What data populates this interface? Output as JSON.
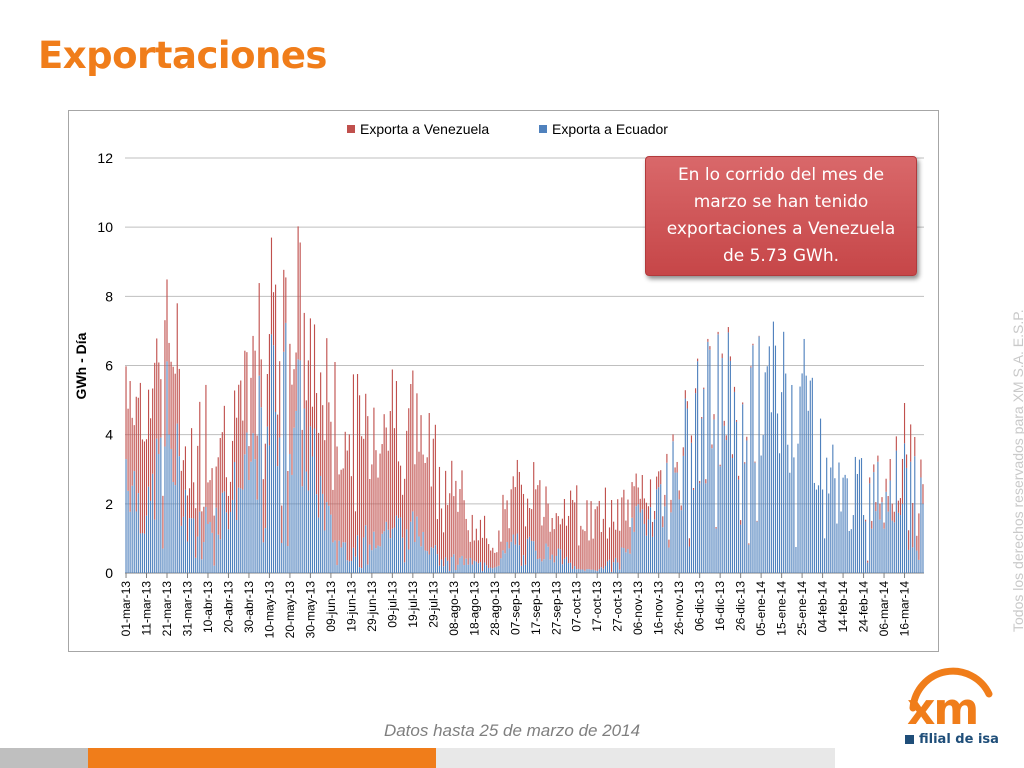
{
  "page": {
    "title": "Exportaciones",
    "footnote": "Datos hasta 25 de marzo de 2014",
    "watermark": "Todos los derechos reservados para XM S.A. E.S.P.",
    "callout": "En lo corrido del mes de marzo se han tenido exportaciones a Venezuela de 5.73 GWh.",
    "logo_text": "xm",
    "logo_subtext": "filial de isa"
  },
  "colors": {
    "title": "#f07d1a",
    "venezuela": "#c0504d",
    "ecuador": "#4f81bd",
    "grid": "#bfbfbf",
    "bar_gray": "#bfbfbf",
    "bar_orange": "#f07d1a",
    "bar_light": "#e8e8e8",
    "logo_orange": "#f07d1a",
    "logo_blue": "#1f4e79"
  },
  "chart_data": {
    "type": "bar",
    "stacked": true,
    "title": "",
    "xlabel": "",
    "ylabel": "GWh - Día",
    "ylim": [
      0,
      12
    ],
    "yticks": [
      0,
      2,
      4,
      6,
      8,
      10,
      12
    ],
    "grid": true,
    "legend_position": "top-center",
    "x_tick_labels": [
      "01-mar-13",
      "11-mar-13",
      "21-mar-13",
      "31-mar-13",
      "10-abr-13",
      "20-abr-13",
      "30-abr-13",
      "10-may-13",
      "20-may-13",
      "30-may-13",
      "09-jun-13",
      "19-jun-13",
      "29-jun-13",
      "09-jul-13",
      "19-jul-13",
      "29-jul-13",
      "08-ago-13",
      "18-ago-13",
      "28-ago-13",
      "07-sep-13",
      "17-sep-13",
      "27-sep-13",
      "07-oct-13",
      "17-oct-13",
      "27-oct-13",
      "06-nov-13",
      "16-nov-13",
      "26-nov-13",
      "06-dic-13",
      "16-dic-13",
      "26-dic-13",
      "05-ene-14",
      "15-ene-14",
      "25-ene-14",
      "04-feb-14",
      "14-feb-14",
      "24-feb-14",
      "06-mar-14",
      "16-mar-14"
    ],
    "series_anchors": [
      {
        "name": "Exporta a Venezuela",
        "x": [
          "01-mar-13",
          "11-mar-13",
          "21-mar-13",
          "31-mar-13",
          "10-abr-13",
          "20-abr-13",
          "30-abr-13",
          "10-may-13",
          "20-may-13",
          "30-may-13",
          "09-jun-13",
          "19-jun-13",
          "29-jun-13",
          "09-jul-13",
          "19-jul-13",
          "29-jul-13",
          "08-ago-13",
          "18-ago-13",
          "28-ago-13",
          "07-sep-13",
          "17-sep-13",
          "27-sep-13",
          "07-oct-13",
          "17-oct-13",
          "27-oct-13",
          "06-nov-13",
          "16-nov-13",
          "26-nov-13",
          "06-dic-13",
          "16-dic-13",
          "26-dic-13",
          "05-ene-14",
          "15-ene-14",
          "25-ene-14",
          "04-feb-14",
          "14-feb-14",
          "24-feb-14",
          "06-mar-14",
          "16-mar-14"
        ],
        "values": [
          2.5,
          3.0,
          3.0,
          1.6,
          2.6,
          2.0,
          2.0,
          2.5,
          2.5,
          2.5,
          3.3,
          3.2,
          3.5,
          3.2,
          3.0,
          2.5,
          2.2,
          0.9,
          0.8,
          1.4,
          1.7,
          1.4,
          1.6,
          1.4,
          1.6,
          0.9,
          0.3,
          0.2,
          0.1,
          0.1,
          0.1,
          0.0,
          0.0,
          0.0,
          0.0,
          0.0,
          0.0,
          0.4,
          0.9
        ]
      },
      {
        "name": "Exporta a Ecuador",
        "x": [
          "01-mar-13",
          "11-mar-13",
          "21-mar-13",
          "31-mar-13",
          "10-abr-13",
          "20-abr-13",
          "30-abr-13",
          "10-may-13",
          "20-may-13",
          "30-may-13",
          "09-jun-13",
          "19-jun-13",
          "29-jun-13",
          "09-jul-13",
          "19-jul-13",
          "29-jul-13",
          "08-ago-13",
          "18-ago-13",
          "28-ago-13",
          "07-sep-13",
          "17-sep-13",
          "27-sep-13",
          "07-oct-13",
          "17-oct-13",
          "27-oct-13",
          "06-nov-13",
          "16-nov-13",
          "26-nov-13",
          "06-dic-13",
          "16-dic-13",
          "26-dic-13",
          "05-ene-14",
          "15-ene-14",
          "25-ene-14",
          "04-feb-14",
          "14-feb-14",
          "24-feb-14",
          "06-mar-14",
          "16-mar-14"
        ],
        "values": [
          3.5,
          1.5,
          4.5,
          1.8,
          1.5,
          2.2,
          3.0,
          5.2,
          5.6,
          3.5,
          1.3,
          0.6,
          1.2,
          1.4,
          1.3,
          1.0,
          0.4,
          0.3,
          0.2,
          1.0,
          0.7,
          0.6,
          0.1,
          0.1,
          0.4,
          1.5,
          2.3,
          3.4,
          4.6,
          5.2,
          5.3,
          5.4,
          5.6,
          5.6,
          3.9,
          2.3,
          2.5,
          2.4,
          2.7
        ]
      }
    ]
  }
}
